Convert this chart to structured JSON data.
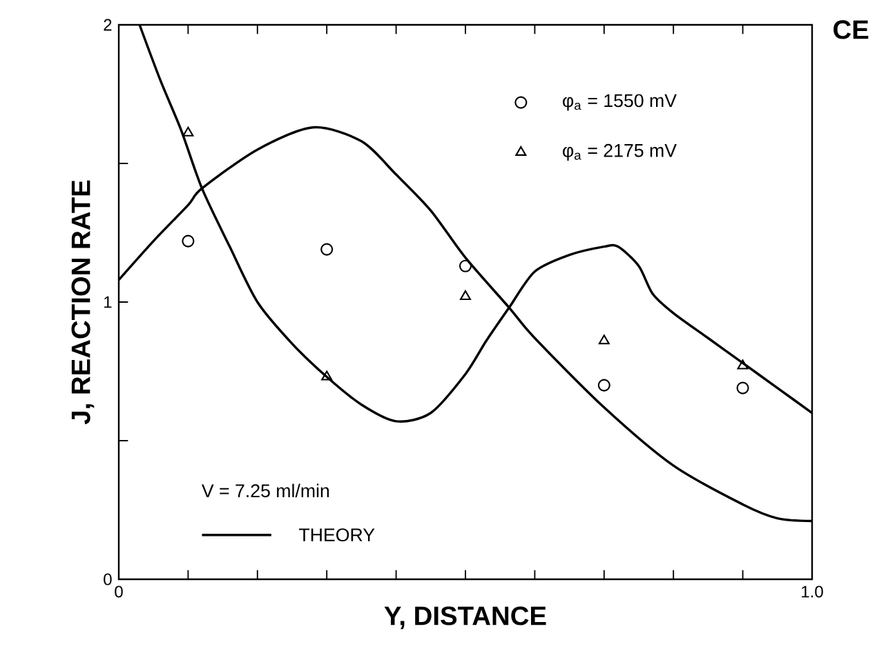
{
  "chart_data": {
    "type": "scatter",
    "xlabel": "Y, DISTANCE",
    "ylabel": "J, REACTION RATE",
    "annotations": [
      "CE",
      "V = 7.25 ml/min",
      "THEORY"
    ],
    "xlim": [
      0,
      1
    ],
    "ylim": [
      0,
      2
    ],
    "xticks": [
      0,
      {
        "value": 0.1,
        "label": null
      },
      {
        "value": 0.2,
        "label": null
      },
      {
        "value": 0.3,
        "label": null
      },
      {
        "value": 0.4,
        "label": null
      },
      {
        "value": 0.5,
        "label": null
      },
      {
        "value": 0.6,
        "label": null
      },
      {
        "value": 0.7,
        "label": null
      },
      {
        "value": 0.8,
        "label": null
      },
      {
        "value": 0.9,
        "label": null
      },
      {
        "value": 1,
        "label": "1.0"
      }
    ],
    "yticks": [
      0,
      {
        "value": 0.5,
        "label": null
      },
      1,
      {
        "value": 1.5,
        "label": null
      },
      2
    ],
    "grid": false,
    "legend": "top right",
    "series": [
      {
        "name": "φ$_{a}$ = 1550 mV",
        "marker": "circle",
        "color": "#000000",
        "x": [
          0.1,
          0.3,
          0.5,
          0.7,
          0.9
        ],
        "values": [
          1.22,
          1.19,
          1.13,
          0.7,
          0.69
        ]
      },
      {
        "name": "φ$_{a}$ = 2175 mV",
        "marker": "triangle",
        "color": "#000000",
        "x": [
          0.1,
          0.3,
          0.5,
          0.7,
          0.9
        ],
        "values": [
          1.61,
          0.73,
          1.02,
          0.86,
          0.77
        ]
      },
      {
        "type": "line",
        "marker": "none",
        "line_style": "solid",
        "color": "#000000",
        "x": [
          0.03,
          0.06,
          0.09,
          0.12,
          0.16,
          0.2,
          0.25,
          0.3,
          0.35,
          0.4,
          0.45,
          0.5,
          0.53,
          0.563,
          0.6,
          0.65,
          0.7,
          0.72,
          0.75,
          0.77,
          0.8,
          0.85,
          0.9,
          0.95,
          1.0
        ],
        "values": [
          2.0,
          1.8,
          1.62,
          1.41,
          1.2,
          1.0,
          0.85,
          0.73,
          0.63,
          0.57,
          0.6,
          0.74,
          0.86,
          0.98,
          1.11,
          1.17,
          1.2,
          1.2,
          1.13,
          1.03,
          0.96,
          0.87,
          0.78,
          0.69,
          0.6
        ]
      },
      {
        "type": "line",
        "marker": "none",
        "line_style": "solid",
        "color": "#000000",
        "x": [
          0,
          0.05,
          0.1,
          0.12,
          0.2,
          0.28,
          0.35,
          0.4,
          0.45,
          0.5,
          0.563,
          0.6,
          0.7,
          0.8,
          0.9,
          0.95,
          1.0
        ],
        "values": [
          1.08,
          1.22,
          1.35,
          1.41,
          1.55,
          1.63,
          1.58,
          1.46,
          1.33,
          1.16,
          0.98,
          0.87,
          0.62,
          0.41,
          0.27,
          0.22,
          0.21
        ]
      }
    ]
  }
}
